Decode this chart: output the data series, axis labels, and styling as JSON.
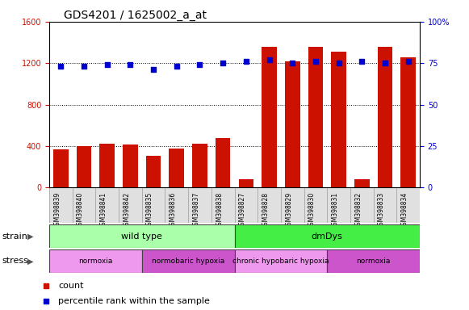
{
  "title": "GDS4201 / 1625002_a_at",
  "samples": [
    "GSM398839",
    "GSM398840",
    "GSM398841",
    "GSM398842",
    "GSM398835",
    "GSM398836",
    "GSM398837",
    "GSM398838",
    "GSM398827",
    "GSM398828",
    "GSM398829",
    "GSM398830",
    "GSM398831",
    "GSM398832",
    "GSM398833",
    "GSM398834"
  ],
  "counts": [
    370,
    400,
    420,
    415,
    310,
    380,
    420,
    480,
    80,
    1360,
    1220,
    1360,
    1310,
    80,
    1360,
    1260
  ],
  "percentiles": [
    73,
    73,
    74,
    74,
    71,
    73,
    74,
    75,
    76,
    77,
    75,
    76,
    75,
    76,
    75,
    76
  ],
  "bar_color": "#cc1100",
  "dot_color": "#0000cc",
  "ylim_left": [
    0,
    1600
  ],
  "ylim_right": [
    0,
    100
  ],
  "yticks_left": [
    0,
    400,
    800,
    1200,
    1600
  ],
  "yticks_right": [
    0,
    25,
    50,
    75,
    100
  ],
  "ytick_labels_right": [
    "0",
    "25",
    "50",
    "75",
    "100%"
  ],
  "strain_labels": [
    {
      "label": "wild type",
      "start": 0,
      "end": 8,
      "color": "#aaffaa"
    },
    {
      "label": "dmDys",
      "start": 8,
      "end": 16,
      "color": "#44ee44"
    }
  ],
  "stress_labels": [
    {
      "label": "normoxia",
      "start": 0,
      "end": 4,
      "color": "#ee99ee"
    },
    {
      "label": "normobaric hypoxia",
      "start": 4,
      "end": 8,
      "color": "#cc55cc"
    },
    {
      "label": "chronic hypobaric hypoxia",
      "start": 8,
      "end": 12,
      "color": "#ee99ee"
    },
    {
      "label": "normoxia",
      "start": 12,
      "end": 16,
      "color": "#cc55cc"
    }
  ],
  "legend_count_color": "#cc1100",
  "legend_dot_color": "#0000cc",
  "background_color": "#ffffff",
  "tick_fontsize": 7,
  "sample_fontsize": 5.5,
  "row_fontsize": 8,
  "small_row_fontsize": 6.5,
  "title_fontsize": 10
}
